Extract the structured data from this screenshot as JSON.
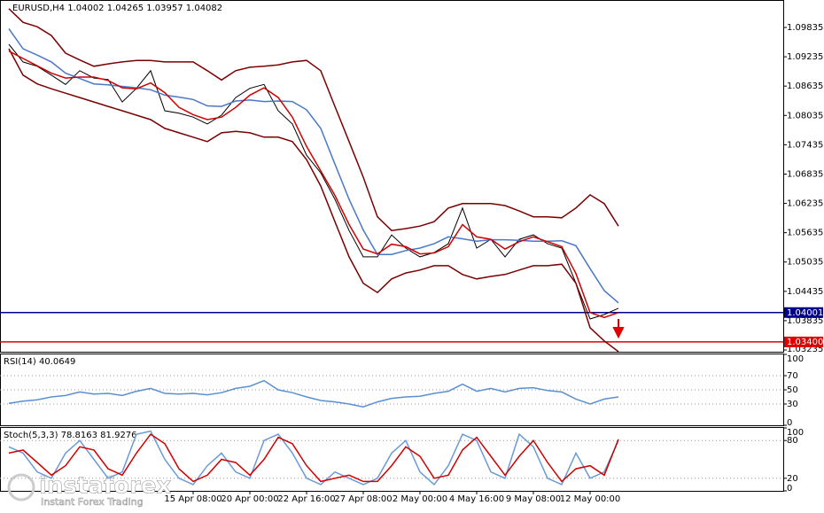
{
  "chart_data": [
    {
      "type": "line",
      "title": "EURUSD,H4  1.04002 1.04265 1.03957 1.04082",
      "xlim": [
        -0.625,
        54.625
      ],
      "ylim": [
        1.03199,
        1.10397
      ],
      "yticks": [
        1.09835,
        1.09235,
        1.08635,
        1.08035,
        1.07435,
        1.06835,
        1.06235,
        1.05635,
        1.05035,
        1.04435,
        1.03835,
        1.03235
      ],
      "hlines": [
        {
          "value": 1.04001,
          "color": "#00008b"
        },
        {
          "value": 1.034,
          "label": "1.03400",
          "color": "#e00000"
        }
      ],
      "series": [
        {
          "color": "#000000",
          "values": [
            1.0949,
            1.0913,
            1.0904,
            1.0886,
            1.0867,
            1.0895,
            1.088,
            1.0877,
            1.0831,
            1.0859,
            1.0895,
            1.0813,
            1.0808,
            1.08,
            1.0786,
            1.0804,
            1.084,
            1.0859,
            1.0867,
            1.0813,
            1.0786,
            1.0722,
            1.0686,
            1.0632,
            1.0568,
            1.0514,
            1.0514,
            1.0559,
            1.0532,
            1.0514,
            1.0523,
            1.0541,
            1.0614,
            1.0532,
            1.055,
            1.0514,
            1.055,
            1.0559,
            1.0541,
            1.0532,
            1.046,
            1.0387,
            1.0396,
            1.0409
          ]
        },
        {
          "color": "#7a0000",
          "values": [
            1.1022,
            1.0994,
            1.0985,
            1.0967,
            1.0931,
            1.0917,
            1.0904,
            1.0909,
            1.0913,
            1.0916,
            1.0916,
            1.0913,
            1.0913,
            1.0913,
            1.0895,
            1.0876,
            1.0895,
            1.0902,
            1.0904,
            1.0907,
            1.0913,
            1.0916,
            1.0895,
            1.0822,
            1.075,
            1.0677,
            1.0596,
            1.0568,
            1.0572,
            1.0577,
            1.0586,
            1.0614,
            1.0623,
            1.0623,
            1.0623,
            1.0619,
            1.0608,
            1.0596,
            1.0596,
            1.0594,
            1.0614,
            1.0641,
            1.0623,
            1.0577
          ]
        },
        {
          "color": "#7a0000",
          "values": [
            1.094,
            1.0886,
            1.0868,
            1.0858,
            1.0849,
            1.084,
            1.0831,
            1.0822,
            1.0813,
            1.0804,
            1.0795,
            1.0777,
            1.0768,
            1.0759,
            1.075,
            1.0768,
            1.0771,
            1.0768,
            1.0759,
            1.0759,
            1.075,
            1.0713,
            1.0659,
            1.0586,
            1.0514,
            1.046,
            1.0441,
            1.0469,
            1.0481,
            1.0487,
            1.0496,
            1.0496,
            1.0478,
            1.0469,
            1.0474,
            1.0478,
            1.0487,
            1.0496,
            1.0496,
            1.0499,
            1.046,
            1.0369,
            1.0342,
            1.032
          ]
        },
        {
          "color": "#4a78c8",
          "values": [
            1.0981,
            1.094,
            1.0927,
            1.0913,
            1.089,
            1.0879,
            1.0868,
            1.0866,
            1.0863,
            1.086,
            1.0856,
            1.0845,
            1.0841,
            1.0836,
            1.0823,
            1.0822,
            1.0833,
            1.0835,
            1.0832,
            1.0833,
            1.0832,
            1.0815,
            1.0777,
            1.0704,
            1.0632,
            1.0569,
            1.0519,
            1.0519,
            1.0527,
            1.0532,
            1.0541,
            1.0555,
            1.0551,
            1.0546,
            1.0549,
            1.0549,
            1.0548,
            1.0546,
            1.0546,
            1.0547,
            1.0537,
            1.049,
            1.0445,
            1.042
          ]
        },
        {
          "color": "#d00000",
          "values": [
            1.0935,
            1.092,
            1.0905,
            1.089,
            1.088,
            1.0882,
            1.0882,
            1.0875,
            1.086,
            1.0858,
            1.087,
            1.085,
            1.082,
            1.0805,
            1.0795,
            1.08,
            1.082,
            1.0845,
            1.086,
            1.084,
            1.08,
            1.074,
            1.069,
            1.064,
            1.058,
            1.053,
            1.052,
            1.054,
            1.0535,
            1.052,
            1.0522,
            1.0535,
            1.058,
            1.0555,
            1.055,
            1.053,
            1.0545,
            1.0555,
            1.0545,
            1.0535,
            1.048,
            1.04,
            1.039,
            1.04
          ]
        }
      ]
    },
    {
      "type": "line",
      "title": "RSI(14) 40.0649",
      "xlim": [
        -0.625,
        54.625
      ],
      "ylim": [
        0,
        100
      ],
      "yticks": [
        100,
        70,
        50,
        30,
        0
      ],
      "grid": true,
      "series": [
        {
          "color": "#5b8fd4",
          "values": [
            31,
            34,
            36,
            40,
            42,
            47,
            44,
            45,
            42,
            48,
            52,
            45,
            44,
            45,
            43,
            46,
            52,
            55,
            63,
            50,
            46,
            40,
            35,
            33,
            30,
            26,
            33,
            38,
            40,
            41,
            45,
            48,
            58,
            48,
            52,
            47,
            52,
            53,
            49,
            47,
            37,
            30,
            37,
            40
          ]
        }
      ]
    },
    {
      "type": "line",
      "title": "Stoch(5,3,3) 78.8163 81.9276",
      "xlim": [
        -0.625,
        54.625
      ],
      "ylim": [
        0,
        100
      ],
      "yticks": [
        100,
        80,
        20,
        0
      ],
      "grid": true,
      "xticks": [
        {
          "value": 13,
          "label": "15 Apr 08:00"
        },
        {
          "value": 17,
          "label": "20 Apr 00:00"
        },
        {
          "value": 21,
          "label": "22 Apr 16:00"
        },
        {
          "value": 25,
          "label": "27 Apr 08:00"
        },
        {
          "value": 29,
          "label": "2 May 00:00"
        },
        {
          "value": 33,
          "label": "4 May 16:00"
        },
        {
          "value": 37,
          "label": "9 May 08:00"
        },
        {
          "value": 41,
          "label": "12 May 00:00"
        }
      ],
      "series": [
        {
          "color": "#6a9ad8",
          "values": [
            70,
            60,
            30,
            20,
            60,
            80,
            50,
            20,
            30,
            90,
            95,
            50,
            20,
            10,
            40,
            60,
            30,
            20,
            80,
            90,
            60,
            20,
            10,
            30,
            20,
            10,
            20,
            60,
            80,
            30,
            10,
            40,
            90,
            80,
            30,
            20,
            90,
            70,
            20,
            10,
            60,
            20,
            30,
            80
          ]
        },
        {
          "color": "#d00000",
          "values": [
            60,
            65,
            45,
            25,
            40,
            70,
            65,
            35,
            25,
            60,
            90,
            75,
            35,
            15,
            25,
            50,
            45,
            25,
            50,
            85,
            75,
            40,
            15,
            20,
            25,
            15,
            15,
            40,
            70,
            55,
            20,
            25,
            65,
            85,
            55,
            25,
            55,
            80,
            45,
            15,
            35,
            40,
            25,
            82
          ]
        }
      ]
    }
  ],
  "watermark": {
    "brand": "instaforex",
    "slogan": "Instant Forex Trading"
  }
}
